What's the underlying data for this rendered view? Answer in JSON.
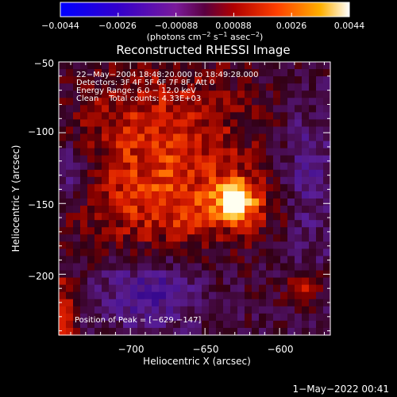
{
  "colorbar": {
    "ticks": [
      "−0.0044",
      "−0.0026",
      "−0.00088",
      "0.00088",
      "0.0026",
      "0.0044"
    ],
    "unit_main": "(photons cm",
    "unit_exp1": "−2",
    "unit_mid1": " s",
    "unit_exp2": "−1",
    "unit_mid2": " asec",
    "unit_exp3": "−2",
    "unit_close": ")"
  },
  "chart_data": {
    "type": "heatmap",
    "title": "Reconstructed RHESSI Image",
    "xlabel": "Heliocentric X (arcsec)",
    "ylabel": "Heliocentric Y (arcsec)",
    "xlim": [
      -748,
      -566
    ],
    "ylim": [
      -243,
      -50
    ],
    "xticks": [
      -700,
      -650,
      -600
    ],
    "xtick_labels": [
      "−700",
      "−650",
      "−600"
    ],
    "yticks": [
      -50,
      -100,
      -150,
      -200
    ],
    "ytick_labels": [
      "−50",
      "−100",
      "−150",
      "−200"
    ],
    "colorbar_range": [
      -0.0044,
      0.0044
    ],
    "peak_position": [
      -629,
      -147
    ],
    "annotations": [
      "22−May−2004 18:48:20.000 to 18:49:28.000",
      "Detectors: 3F 4F 5F 6F 7F 8F, Att 0",
      "Energy Range: 6.0 − 12.0 keV",
      "Clean    Total counts: 4.33E+03"
    ],
    "peak_label": "Position of Peak = [−629,−147]"
  },
  "footer": {
    "date": "1−May−2022 00:41"
  }
}
